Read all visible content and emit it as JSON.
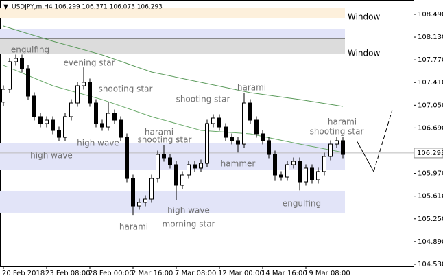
{
  "header": "USDJPY,m,H4  106.299 106.371 106.073 106.293",
  "chart_data": {
    "type": "candlestick",
    "open": [
      107.1,
      107.304,
      107.739,
      107.793,
      107.63,
      107.195,
      106.869,
      106.76,
      106.814,
      106.651,
      106.542,
      106.869,
      107.086,
      107.358,
      107.413,
      107.086,
      106.76,
      106.705,
      106.923,
      106.814,
      106.542,
      105.889,
      105.454,
      105.509,
      105.563,
      105.889,
      106.27,
      106.216,
      106.107,
      105.781,
      105.944,
      106.107,
      106.053,
      106.129,
      106.76,
      106.847,
      106.705,
      106.542,
      106.488,
      106.433,
      107.086,
      106.814,
      106.597,
      106.488,
      106.27,
      105.944,
      105.911,
      106.107,
      106.161,
      105.835,
      106.053,
      105.868,
      105.999,
      106.238,
      106.433,
      106.488
    ],
    "high": [
      107.364,
      107.799,
      107.853,
      107.853,
      107.69,
      107.255,
      106.929,
      106.874,
      106.874,
      106.711,
      106.929,
      107.146,
      107.418,
      107.65,
      107.473,
      107.146,
      106.82,
      107.1,
      106.983,
      106.874,
      106.602,
      105.949,
      105.569,
      105.623,
      105.949,
      106.33,
      106.42,
      106.276,
      106.167,
      106.004,
      106.167,
      106.167,
      106.189,
      106.82,
      106.907,
      106.907,
      106.765,
      106.602,
      106.548,
      107.25,
      107.146,
      106.874,
      106.657,
      106.548,
      106.33,
      106.004,
      106.167,
      106.221,
      106.221,
      106.113,
      106.113,
      106.059,
      106.298,
      106.493,
      106.548,
      106.548
    ],
    "low": [
      107.04,
      107.244,
      107.679,
      107.57,
      107.135,
      106.809,
      106.7,
      106.7,
      106.591,
      106.482,
      106.482,
      106.809,
      107.026,
      107.298,
      107.026,
      106.7,
      106.645,
      106.645,
      106.754,
      106.482,
      105.829,
      105.3,
      105.394,
      105.449,
      105.503,
      105.829,
      106.156,
      106.047,
      105.55,
      105.721,
      105.884,
      105.993,
      105.993,
      106.069,
      106.7,
      106.645,
      106.482,
      106.428,
      106.3,
      106.373,
      106.754,
      106.537,
      106.428,
      106.21,
      105.85,
      105.851,
      105.851,
      106.047,
      105.7,
      105.775,
      105.808,
      105.808,
      105.939,
      106.178,
      106.373,
      106.21
    ],
    "close": [
      107.304,
      107.739,
      107.793,
      107.63,
      107.195,
      106.869,
      106.76,
      106.814,
      106.651,
      106.542,
      106.869,
      107.086,
      107.358,
      107.413,
      107.086,
      106.76,
      106.705,
      106.923,
      106.814,
      106.542,
      105.889,
      105.454,
      105.509,
      105.563,
      105.889,
      106.27,
      106.216,
      106.107,
      105.781,
      105.944,
      106.107,
      106.053,
      106.129,
      106.76,
      106.847,
      106.705,
      106.542,
      106.488,
      106.433,
      107.086,
      106.814,
      106.597,
      106.488,
      106.27,
      105.944,
      105.911,
      106.107,
      106.161,
      105.835,
      106.053,
      105.868,
      105.999,
      106.238,
      106.433,
      106.488,
      106.27
    ],
    "moving_averages": [
      {
        "color": "#5a9a5a",
        "x": [
          0,
          8,
          16,
          24,
          32,
          40,
          48,
          55
        ],
        "values": [
          108.305,
          108.065,
          107.848,
          107.576,
          107.413,
          107.249,
          107.141,
          107.032
        ]
      },
      {
        "color": "#6aaa6a",
        "x": [
          0,
          8,
          16,
          24,
          32,
          40,
          48,
          55
        ],
        "values": [
          107.684,
          107.358,
          107.14,
          106.869,
          106.651,
          106.597,
          106.433,
          106.303
        ]
      }
    ],
    "zones": [
      {
        "from": 108.435,
        "to": 108.587,
        "color": "#fdf0dc",
        "label": "Window",
        "label_color": "#e8a33c"
      },
      {
        "from": 108.109,
        "to": 108.261,
        "color": "#e2e4f8"
      },
      {
        "from": 107.859,
        "to": 108.109,
        "color": "#dcdcdc",
        "label": "Window",
        "label_color": "#8a8a8a"
      },
      {
        "from": 106.02,
        "to": 106.455,
        "color": "#e2e4f8"
      },
      {
        "from": 105.346,
        "to": 105.694,
        "color": "#e2e4f8"
      }
    ],
    "annotations": [
      "engulfing",
      "evening star",
      "shooting star",
      "harami",
      "shooting star",
      "harami",
      "shooting star",
      "high wave",
      "high wave",
      "hammer",
      "harami",
      "shooting star",
      "engulfing",
      "high wave",
      "morning star",
      "harami"
    ],
    "last_price": 106.293,
    "ylim": [
      104.497,
      108.718
    ],
    "yticks": [
      {
        "value": 108.49,
        "label": "108.490"
      },
      {
        "value": 108.13,
        "label": "108.130"
      },
      {
        "value": 107.77,
        "label": "107.770"
      },
      {
        "value": 107.41,
        "label": "107.410"
      },
      {
        "value": 107.05,
        "label": "107.050"
      },
      {
        "value": 106.69,
        "label": "106.690"
      },
      {
        "value": 106.33,
        "label": "106.330"
      },
      {
        "value": 105.97,
        "label": "105.970"
      },
      {
        "value": 105.61,
        "label": "105.610"
      },
      {
        "value": 105.25,
        "label": "105.250"
      },
      {
        "value": 104.89,
        "label": "104.890"
      },
      {
        "value": 104.53,
        "label": "104.530"
      }
    ],
    "xticks": [
      {
        "value": 0,
        "label": "20 Feb 2018"
      },
      {
        "value": 7,
        "label": "23 Feb 08:00"
      },
      {
        "value": 14,
        "label": "28 Feb 00:00"
      },
      {
        "value": 21,
        "label": "2 Mar 16:00"
      },
      {
        "value": 28,
        "label": "7 Mar 08:00"
      },
      {
        "value": 35,
        "label": "12 Mar 00:00"
      },
      {
        "value": 42,
        "label": "14 Mar 16:00"
      },
      {
        "value": 49,
        "label": "19 Mar 08:00"
      }
    ]
  }
}
